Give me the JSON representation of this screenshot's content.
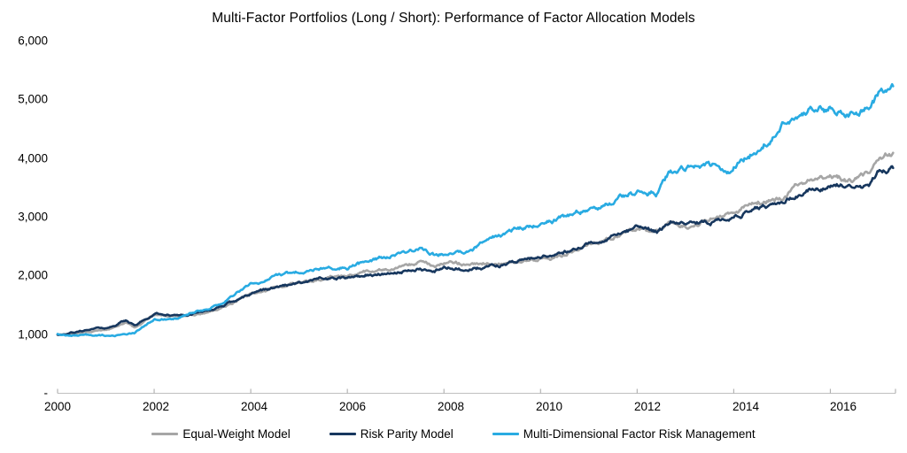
{
  "title": "Multi-Factor Portfolios (Long / Short): Performance of Factor Allocation Models",
  "y_axis": {
    "labels": [
      "6,000",
      "5,000",
      "4,000",
      "3,000",
      "2,000",
      "1,000",
      "-"
    ]
  },
  "x_axis": {
    "labels": [
      "2000",
      "2002",
      "2004",
      "2006",
      "2008",
      "2010",
      "2012",
      "2014",
      "2016"
    ]
  },
  "legend": {
    "items": [
      {
        "label": "Equal-Weight Model",
        "color": "#a6a6a6"
      },
      {
        "label": "Risk Parity Model",
        "color": "#17375e"
      },
      {
        "label": "Multi-Dimensional Factor Risk Management",
        "color": "#29abe2"
      }
    ]
  },
  "colors": {
    "axis_line": "#bfbfbf",
    "tick": "#a6a6a6",
    "background": "#ffffff"
  },
  "chart_data": {
    "type": "line",
    "title": "Multi-Factor Portfolios (Long / Short): Performance of Factor Allocation Models",
    "xlabel": "",
    "ylabel": "",
    "xlim": [
      2000,
      2017.35
    ],
    "ylim": [
      0,
      6000
    ],
    "x_ticks": [
      2000,
      2002,
      2004,
      2006,
      2008,
      2010,
      2012,
      2014,
      2016
    ],
    "y_ticks": [
      0,
      1000,
      2000,
      3000,
      4000,
      5000,
      6000
    ],
    "grid": false,
    "legend_position": "bottom",
    "start_value": 1000,
    "x": [
      2000,
      2000.5,
      2001,
      2001.4,
      2001.6,
      2002,
      2002.5,
      2003,
      2003.5,
      2004,
      2004.5,
      2005,
      2005.5,
      2006,
      2006.5,
      2007,
      2007.5,
      2007.8,
      2008,
      2008.5,
      2009,
      2009.5,
      2010,
      2010.5,
      2011,
      2011.5,
      2012,
      2012.4,
      2012.7,
      2013,
      2013.5,
      2013.9,
      2014,
      2014.5,
      2015,
      2015.4,
      2015.8,
      2016,
      2016.4,
      2016.8,
      2017,
      2017.3
    ],
    "series": [
      {
        "name": "Equal-Weight Model",
        "color": "#a6a6a6",
        "values": [
          1000,
          1040,
          1080,
          1200,
          1130,
          1330,
          1310,
          1350,
          1500,
          1690,
          1810,
          1900,
          1960,
          2010,
          2070,
          2150,
          2200,
          2150,
          2220,
          2180,
          2220,
          2230,
          2260,
          2350,
          2540,
          2650,
          2770,
          2720,
          2880,
          2840,
          2960,
          3060,
          3110,
          3250,
          3330,
          3550,
          3650,
          3680,
          3620,
          3700,
          3950,
          4060
        ]
      },
      {
        "name": "Risk Parity Model",
        "color": "#17375e",
        "values": [
          1000,
          1060,
          1110,
          1240,
          1130,
          1350,
          1320,
          1390,
          1520,
          1680,
          1800,
          1880,
          1940,
          1980,
          2020,
          2060,
          2110,
          2060,
          2150,
          2100,
          2150,
          2230,
          2300,
          2400,
          2580,
          2690,
          2810,
          2760,
          2930,
          2870,
          2940,
          2990,
          3030,
          3160,
          3230,
          3420,
          3520,
          3560,
          3500,
          3560,
          3800,
          3860
        ]
      },
      {
        "name": "Multi-Dimensional Factor Risk Management",
        "color": "#29abe2",
        "values": [
          1000,
          985,
          975,
          1005,
          1020,
          1240,
          1290,
          1420,
          1600,
          1830,
          1960,
          2060,
          2110,
          2150,
          2260,
          2370,
          2460,
          2360,
          2370,
          2440,
          2650,
          2780,
          2900,
          2980,
          3130,
          3270,
          3460,
          3420,
          3780,
          3820,
          3860,
          3760,
          3900,
          4180,
          4580,
          4750,
          4840,
          4810,
          4740,
          4900,
          5070,
          5200
        ]
      }
    ]
  }
}
